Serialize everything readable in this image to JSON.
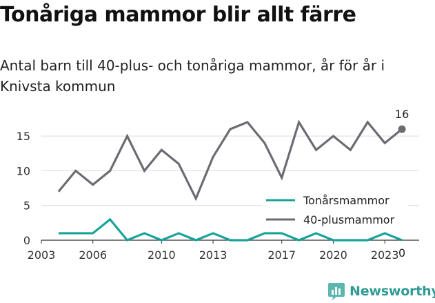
{
  "title": "Tonåriga mammor blir allt färre",
  "subtitle": "Antal barn till 40-plus- och tonåriga mammor, år för år i Knivsta kommun",
  "brand": {
    "name": "Newsworthy",
    "color": "#2f9b94",
    "icon": "bar-chart-icon"
  },
  "chart_data": {
    "type": "line",
    "x": [
      2004,
      2005,
      2006,
      2007,
      2008,
      2009,
      2010,
      2011,
      2012,
      2013,
      2014,
      2015,
      2016,
      2017,
      2018,
      2019,
      2020,
      2021,
      2022,
      2023,
      2024
    ],
    "series": [
      {
        "name": "Tonårsmammor",
        "color": "#17a398",
        "values": [
          1,
          1,
          1,
          3,
          0,
          1,
          0,
          1,
          0,
          1,
          0,
          0,
          1,
          1,
          0,
          1,
          0,
          0,
          0,
          1,
          0
        ]
      },
      {
        "name": "40-plusmammor",
        "color": "#6b6b73",
        "values": [
          7,
          10,
          8,
          10,
          15,
          10,
          13,
          11,
          6,
          12,
          16,
          17,
          14,
          9,
          17,
          13,
          15,
          13,
          17,
          14,
          16
        ]
      }
    ],
    "end_labels": {
      "tonarsmammor": "0",
      "plusmammor": "16"
    },
    "x_ticks": [
      "2003",
      "2006",
      "2010",
      "2013",
      "2017",
      "2020",
      "2023"
    ],
    "y_ticks": [
      "0",
      "5",
      "10",
      "15"
    ],
    "xlim": [
      2003,
      2025
    ],
    "ylim": [
      0,
      17.5
    ],
    "grid": true,
    "legend": "bottom-right"
  }
}
